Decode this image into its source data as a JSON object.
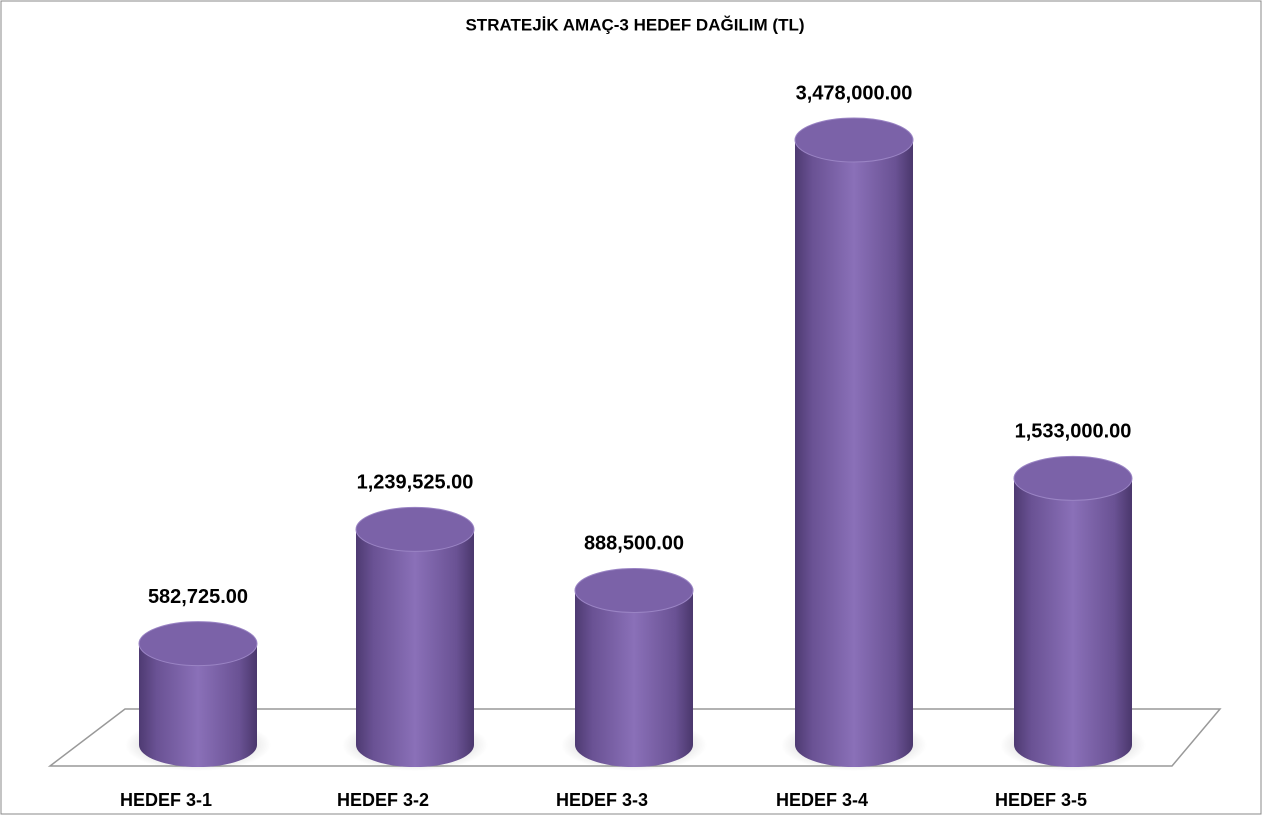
{
  "chart_data": {
    "type": "bar",
    "title": "STRATEJİK AMAÇ-3  HEDEF DAĞILIM (TL)",
    "categories": [
      "HEDEF 3-1",
      "HEDEF 3-2",
      "HEDEF 3-3",
      "HEDEF 3-4",
      "HEDEF 3-5"
    ],
    "values": [
      582725,
      1239525,
      888500,
      3478000,
      1533000
    ],
    "value_labels": [
      "582,725.00",
      "1,239,525.00",
      "888,500.00",
      "3,478,000.00",
      "1,533,000.00"
    ],
    "color": "#7b62a8"
  }
}
